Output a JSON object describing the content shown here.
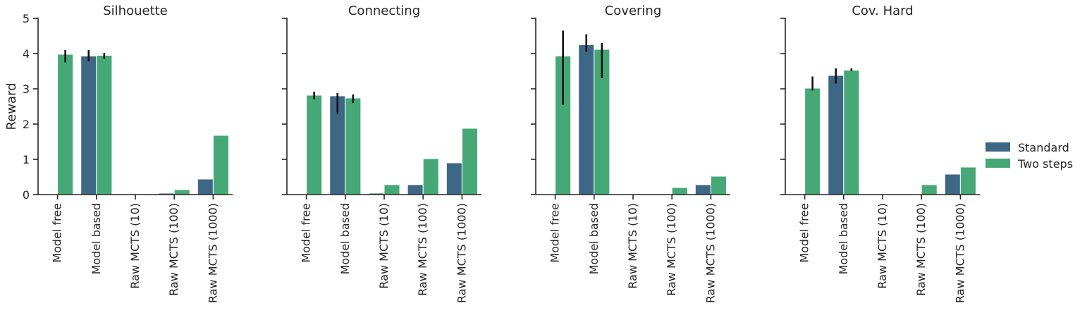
{
  "chart_data": {
    "type": "bar",
    "ylabel": "Reward",
    "ylim": [
      0,
      5
    ],
    "yticks": [
      "0",
      "1",
      "2",
      "3",
      "4",
      "5"
    ],
    "sharey": true,
    "legend": {
      "placement": "right",
      "entries": [
        {
          "name": "Standard",
          "color": "#3e6785"
        },
        {
          "name": "Two steps",
          "color": "#46a876"
        }
      ]
    },
    "colors": {
      "Standard": "#3e6785",
      "Two steps": "#46a876",
      "errorbar": "#111111",
      "axis": "#262626"
    },
    "categories": [
      "Model free",
      "Model based",
      "Raw MCTS (10)",
      "Raw MCTS (100)",
      "Raw MCTS (1000)"
    ],
    "panels": [
      {
        "title": "Silhouette",
        "series": [
          {
            "name": "Standard",
            "values": [
              0,
              3.93,
              0,
              0.04,
              0.44
            ],
            "err": [
              null,
              [
                3.78,
                4.1
              ],
              null,
              null,
              null
            ]
          },
          {
            "name": "Two steps",
            "values": [
              3.98,
              3.95,
              0.02,
              0.14,
              1.68
            ],
            "err": [
              [
                3.75,
                4.1
              ],
              [
                3.85,
                4.02
              ],
              null,
              null,
              null
            ]
          }
        ]
      },
      {
        "title": "Connecting",
        "series": [
          {
            "name": "Standard",
            "values": [
              0,
              2.8,
              0.04,
              0.28,
              0.9
            ],
            "err": [
              null,
              [
                2.3,
                2.88
              ],
              null,
              null,
              null
            ]
          },
          {
            "name": "Two steps",
            "values": [
              2.82,
              2.74,
              0.28,
              1.02,
              1.88
            ],
            "err": [
              [
                2.7,
                2.92
              ],
              [
                2.6,
                2.84
              ],
              null,
              null,
              null
            ]
          }
        ]
      },
      {
        "title": "Covering",
        "series": [
          {
            "name": "Standard",
            "values": [
              0,
              4.25,
              0,
              0,
              0.28
            ],
            "err": [
              null,
              [
                4.05,
                4.55
              ],
              null,
              null,
              null
            ]
          },
          {
            "name": "Two steps",
            "values": [
              3.93,
              4.12,
              0,
              0.2,
              0.52
            ],
            "err": [
              [
                2.55,
                4.65
              ],
              [
                3.3,
                4.3
              ],
              null,
              null,
              null
            ]
          }
        ]
      },
      {
        "title": "Cov. Hard",
        "series": [
          {
            "name": "Standard",
            "values": [
              0,
              3.38,
              0,
              0,
              0.58
            ],
            "err": [
              null,
              [
                3.15,
                3.58
              ],
              null,
              null,
              null
            ]
          },
          {
            "name": "Two steps",
            "values": [
              3.02,
              3.53,
              0,
              0.28,
              0.78
            ],
            "err": [
              [
                2.95,
                3.35
              ],
              [
                3.5,
                3.58
              ],
              null,
              null,
              null
            ]
          }
        ]
      }
    ]
  }
}
